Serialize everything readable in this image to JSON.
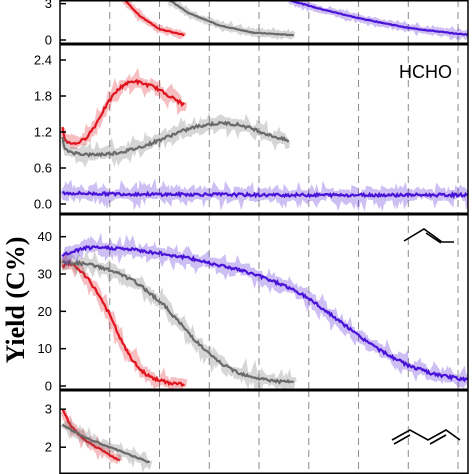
{
  "ylabel": "Yield (C%)",
  "colors": {
    "red": "#e0141e",
    "gray": "#6a6a6a",
    "purple": "#4a14d8",
    "axis": "#000000",
    "grid": "#8a8a8a"
  },
  "chart_data": [
    {
      "type": "line",
      "title": "",
      "ylim": [
        0,
        3.3
      ],
      "yticks": [
        "0",
        "3"
      ],
      "ytick_values": [
        0,
        3
      ],
      "x": [
        0,
        1,
        2,
        3,
        4,
        5,
        6,
        7,
        8
      ],
      "series": [
        {
          "color": "#e0141e",
          "x": [
            1.3,
            1.6,
            2.0,
            2.5
          ],
          "values": [
            3.3,
            2.0,
            0.9,
            0.4
          ]
        },
        {
          "color": "#6a6a6a",
          "x": [
            2.2,
            2.6,
            3.2,
            3.9,
            4.7
          ],
          "values": [
            3.3,
            2.2,
            1.2,
            0.6,
            0.4
          ]
        },
        {
          "color": "#4a14d8",
          "x": [
            4.6,
            5.2,
            6.0,
            7.0,
            8.0,
            8.9
          ],
          "values": [
            3.3,
            2.6,
            1.8,
            1.0,
            0.5,
            0.3
          ]
        }
      ]
    },
    {
      "type": "line",
      "title": "",
      "label": "HCHO",
      "ylim": [
        -0.1,
        2.6
      ],
      "yticks": [
        "0.0",
        "0.6",
        "1.2",
        "1.8",
        "2.4"
      ],
      "ytick_values": [
        0,
        0.6,
        1.2,
        1.8,
        2.4
      ],
      "series": [
        {
          "color": "#e0141e",
          "x": [
            0.05,
            0.1,
            0.3,
            0.5,
            0.7,
            0.9,
            1.1,
            1.3,
            1.5,
            1.7,
            1.9,
            2.1,
            2.3,
            2.5
          ],
          "values": [
            1.3,
            1.05,
            1.0,
            1.08,
            1.3,
            1.6,
            1.85,
            2.0,
            2.05,
            2.0,
            1.95,
            1.85,
            1.75,
            1.65
          ]
        },
        {
          "color": "#6a6a6a",
          "x": [
            0.05,
            0.1,
            0.3,
            0.6,
            0.9,
            1.2,
            1.5,
            1.8,
            2.1,
            2.4,
            2.7,
            3.0,
            3.3,
            3.6,
            3.9,
            4.2,
            4.6
          ],
          "values": [
            1.1,
            0.9,
            0.85,
            0.82,
            0.83,
            0.86,
            0.92,
            1.0,
            1.1,
            1.2,
            1.28,
            1.33,
            1.35,
            1.32,
            1.25,
            1.15,
            1.05
          ]
        },
        {
          "color": "#4a14d8",
          "x": [
            0.05,
            1,
            2,
            3,
            4,
            5,
            6,
            7,
            8,
            8.9
          ],
          "values": [
            0.18,
            0.17,
            0.16,
            0.16,
            0.15,
            0.15,
            0.15,
            0.15,
            0.15,
            0.15
          ]
        }
      ]
    },
    {
      "type": "line",
      "title": "",
      "icon": "propylene-icon",
      "ylim": [
        0,
        45
      ],
      "yticks": [
        "0",
        "10",
        "20",
        "30",
        "40"
      ],
      "ytick_values": [
        0,
        10,
        20,
        30,
        40
      ],
      "series": [
        {
          "color": "#e0141e",
          "x": [
            0.05,
            0.2,
            0.4,
            0.6,
            0.8,
            1.0,
            1.2,
            1.4,
            1.6,
            1.8,
            2.0,
            2.2,
            2.5
          ],
          "values": [
            32,
            33,
            31,
            28,
            24,
            19,
            13,
            8,
            4.5,
            2.5,
            1.5,
            0.8,
            0.5
          ]
        },
        {
          "color": "#6a6a6a",
          "x": [
            0.05,
            0.3,
            0.6,
            0.9,
            1.2,
            1.5,
            1.8,
            2.1,
            2.4,
            2.7,
            3.0,
            3.3,
            3.6,
            4.0,
            4.4,
            4.7
          ],
          "values": [
            33,
            33,
            32.5,
            31.5,
            30,
            28,
            25,
            21.5,
            17,
            12.5,
            8.5,
            5.5,
            3.5,
            2,
            1.2,
            1
          ]
        },
        {
          "color": "#4a14d8",
          "x": [
            0.05,
            0.5,
            1.0,
            1.5,
            2.0,
            2.5,
            3.0,
            3.5,
            4.0,
            4.5,
            5.0,
            5.5,
            6.0,
            6.5,
            7.0,
            7.5,
            8.0,
            8.5,
            8.9
          ],
          "values": [
            35,
            37,
            37,
            36.5,
            35.5,
            34.5,
            33,
            31.5,
            29.5,
            27,
            23.5,
            18.5,
            13.5,
            9,
            5.5,
            3.2,
            2,
            1.3,
            1
          ]
        }
      ]
    },
    {
      "type": "line",
      "title": "",
      "icon": "butadiene-icon",
      "ylim": [
        1.4,
        3.4
      ],
      "yticks": [
        "2",
        "3"
      ],
      "ytick_values": [
        2,
        3
      ],
      "series": [
        {
          "color": "#e0141e",
          "x": [
            0.05,
            0.2,
            0.4,
            0.6,
            0.8,
            1.0,
            1.2
          ],
          "values": [
            3.0,
            2.6,
            2.3,
            2.1,
            1.95,
            1.8,
            1.65
          ]
        },
        {
          "color": "#6a6a6a",
          "x": [
            0.05,
            0.3,
            0.6,
            0.9,
            1.2,
            1.5,
            1.8
          ],
          "values": [
            2.6,
            2.4,
            2.2,
            2.05,
            1.9,
            1.75,
            1.6
          ]
        }
      ]
    }
  ]
}
